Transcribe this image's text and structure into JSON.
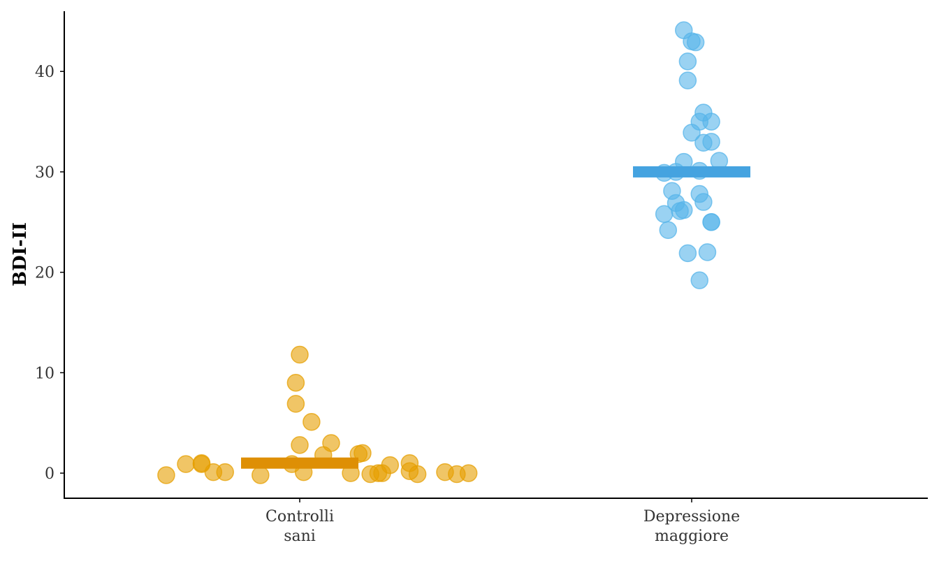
{
  "chart_data": {
    "type": "scatter",
    "title": "",
    "xlabel": "",
    "ylabel": "BDI-II",
    "ylim": [
      -2.5,
      46
    ],
    "yticks": [
      0,
      10,
      20,
      30,
      40
    ],
    "grid": false,
    "legend": "none",
    "categories": [
      "Controlli\nsani",
      "Depressione\nmaggiore"
    ],
    "category_lines": [
      [
        "Controlli",
        "sani"
      ],
      [
        "Depressione",
        "maggiore"
      ]
    ],
    "series": [
      {
        "category": "Controlli\nsani",
        "color": "#E69F00",
        "mean": 1.0,
        "points": [
          {
            "x": -0.34,
            "y": -0.2
          },
          {
            "x": -0.29,
            "y": 0.9
          },
          {
            "x": -0.25,
            "y": 1.0
          },
          {
            "x": -0.25,
            "y": 0.9
          },
          {
            "x": -0.22,
            "y": 0.1
          },
          {
            "x": -0.19,
            "y": 0.1
          },
          {
            "x": -0.1,
            "y": -0.2
          },
          {
            "x": -0.02,
            "y": 0.9
          },
          {
            "x": 0.0,
            "y": 2.8
          },
          {
            "x": 0.01,
            "y": 0.1
          },
          {
            "x": -0.01,
            "y": 6.9
          },
          {
            "x": -0.01,
            "y": 9.0
          },
          {
            "x": 0.0,
            "y": 11.8
          },
          {
            "x": 0.03,
            "y": 5.1
          },
          {
            "x": 0.06,
            "y": 1.8
          },
          {
            "x": 0.08,
            "y": 3.0
          },
          {
            "x": 0.13,
            "y": 0.0
          },
          {
            "x": 0.15,
            "y": 1.9
          },
          {
            "x": 0.16,
            "y": 2.0
          },
          {
            "x": 0.18,
            "y": -0.1
          },
          {
            "x": 0.2,
            "y": 0.0
          },
          {
            "x": 0.21,
            "y": 0.0
          },
          {
            "x": 0.23,
            "y": 0.8
          },
          {
            "x": 0.28,
            "y": 1.0
          },
          {
            "x": 0.28,
            "y": 0.2
          },
          {
            "x": 0.3,
            "y": -0.1
          },
          {
            "x": 0.37,
            "y": 0.1
          },
          {
            "x": 0.4,
            "y": -0.1
          },
          {
            "x": 0.43,
            "y": 0.0
          }
        ]
      },
      {
        "category": "Depressione\nmaggiore",
        "color": "#56B4E9",
        "mean": 30.0,
        "points": [
          {
            "x": -0.02,
            "y": 44.1
          },
          {
            "x": 0.0,
            "y": 43.0
          },
          {
            "x": 0.01,
            "y": 42.9
          },
          {
            "x": -0.01,
            "y": 41.0
          },
          {
            "x": -0.01,
            "y": 39.1
          },
          {
            "x": 0.03,
            "y": 35.9
          },
          {
            "x": 0.02,
            "y": 35.0
          },
          {
            "x": 0.05,
            "y": 35.0
          },
          {
            "x": 0.0,
            "y": 33.9
          },
          {
            "x": 0.03,
            "y": 32.9
          },
          {
            "x": 0.05,
            "y": 33.0
          },
          {
            "x": -0.02,
            "y": 31.0
          },
          {
            "x": 0.07,
            "y": 31.1
          },
          {
            "x": -0.07,
            "y": 29.9
          },
          {
            "x": -0.04,
            "y": 30.0
          },
          {
            "x": 0.02,
            "y": 30.1
          },
          {
            "x": -0.05,
            "y": 28.1
          },
          {
            "x": 0.02,
            "y": 27.8
          },
          {
            "x": -0.04,
            "y": 26.9
          },
          {
            "x": 0.03,
            "y": 27.0
          },
          {
            "x": -0.03,
            "y": 26.1
          },
          {
            "x": -0.02,
            "y": 26.2
          },
          {
            "x": -0.07,
            "y": 25.8
          },
          {
            "x": 0.05,
            "y": 25.0
          },
          {
            "x": 0.05,
            "y": 25.0
          },
          {
            "x": -0.06,
            "y": 24.2
          },
          {
            "x": -0.01,
            "y": 21.9
          },
          {
            "x": 0.04,
            "y": 22.0
          },
          {
            "x": 0.02,
            "y": 19.2
          }
        ]
      }
    ]
  }
}
